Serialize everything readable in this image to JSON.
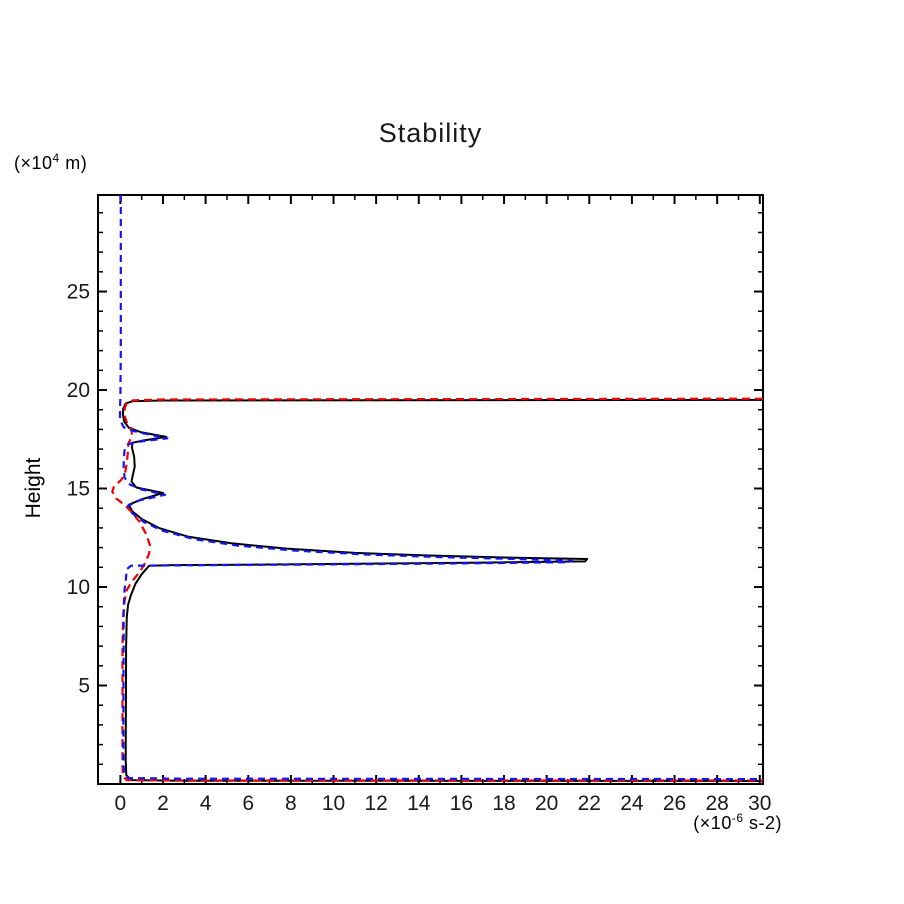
{
  "page": {
    "background": "#ffffff"
  },
  "chart_data": {
    "type": "line",
    "title": "Stability",
    "y_axis_title": "Height",
    "y_unit_label": {
      "prefix": "(×10",
      "sup": "4",
      "suffix": " m)"
    },
    "x_unit_label": {
      "prefix": "(×10",
      "sup": "-6",
      "suffix": " s-2)"
    },
    "xlim": [
      -1.05,
      30.15
    ],
    "ylim": [
      0,
      29.9
    ],
    "x_tick_labels": [
      0,
      2,
      4,
      6,
      8,
      10,
      12,
      14,
      16,
      18,
      20,
      22,
      24,
      26,
      28,
      30
    ],
    "y_tick_labels": [
      5,
      10,
      15,
      20,
      25
    ],
    "x_minor_step": 1,
    "x_major_step": 2,
    "y_minor_step": 1,
    "y_major_step": 5,
    "grid": "off",
    "legend": "none",
    "frame_color": "#000000",
    "label_color": "#1a1a1a",
    "series": [
      {
        "name": "black-solid-profile",
        "color": "#000000",
        "dash": "",
        "width": 2,
        "points": [
          [
            30.15,
            19.5
          ],
          [
            2.0,
            19.47
          ],
          [
            0.6,
            19.44
          ],
          [
            0.25,
            19.32
          ],
          [
            0.13,
            19.05
          ],
          [
            0.12,
            18.75
          ],
          [
            0.18,
            18.4
          ],
          [
            0.4,
            18.08
          ],
          [
            1.0,
            17.85
          ],
          [
            2.15,
            17.62
          ],
          [
            1.0,
            17.42
          ],
          [
            0.55,
            17.32
          ],
          [
            0.55,
            17.05
          ],
          [
            0.65,
            16.6
          ],
          [
            0.67,
            16.1
          ],
          [
            0.58,
            15.65
          ],
          [
            0.52,
            15.35
          ],
          [
            0.75,
            15.05
          ],
          [
            2.0,
            14.77
          ],
          [
            1.0,
            14.45
          ],
          [
            0.4,
            14.18
          ],
          [
            0.55,
            13.85
          ],
          [
            1.0,
            13.45
          ],
          [
            1.8,
            13.0
          ],
          [
            3.2,
            12.55
          ],
          [
            5.2,
            12.22
          ],
          [
            7.8,
            11.95
          ],
          [
            11.0,
            11.73
          ],
          [
            14.5,
            11.6
          ],
          [
            18.0,
            11.5
          ],
          [
            21.9,
            11.42
          ],
          [
            21.8,
            11.3
          ],
          [
            17.0,
            11.24
          ],
          [
            11.0,
            11.18
          ],
          [
            5.5,
            11.13
          ],
          [
            2.5,
            11.11
          ],
          [
            1.35,
            11.08
          ],
          [
            1.0,
            10.65
          ],
          [
            0.7,
            10.15
          ],
          [
            0.5,
            9.6
          ],
          [
            0.36,
            9.1
          ],
          [
            0.3,
            8.5
          ],
          [
            0.27,
            7.0
          ],
          [
            0.26,
            4.0
          ],
          [
            0.25,
            1.2
          ],
          [
            0.28,
            0.45
          ],
          [
            0.5,
            0.2
          ],
          [
            3.0,
            0.17
          ],
          [
            30.15,
            0.15
          ]
        ]
      },
      {
        "name": "red-dashed-profile",
        "color": "#f40000",
        "dash": "8 5",
        "width": 2.2,
        "points": [
          [
            30.15,
            19.56
          ],
          [
            2.0,
            19.52
          ],
          [
            0.6,
            19.48
          ],
          [
            0.3,
            19.35
          ],
          [
            0.2,
            19.05
          ],
          [
            0.2,
            18.7
          ],
          [
            0.3,
            18.35
          ],
          [
            0.55,
            18.0
          ],
          [
            0.52,
            17.6
          ],
          [
            0.38,
            17.3
          ],
          [
            0.35,
            16.8
          ],
          [
            0.3,
            16.3
          ],
          [
            0.22,
            15.8
          ],
          [
            0.05,
            15.45
          ],
          [
            -0.3,
            15.1
          ],
          [
            -0.38,
            14.85
          ],
          [
            -0.2,
            14.5
          ],
          [
            0.1,
            14.25
          ],
          [
            0.5,
            13.85
          ],
          [
            0.9,
            13.3
          ],
          [
            1.2,
            12.7
          ],
          [
            1.38,
            12.15
          ],
          [
            1.35,
            11.7
          ],
          [
            1.15,
            11.2
          ],
          [
            0.9,
            10.75
          ],
          [
            0.55,
            10.3
          ],
          [
            0.3,
            9.85
          ],
          [
            0.2,
            9.3
          ],
          [
            0.13,
            8.6
          ],
          [
            0.1,
            7.0
          ],
          [
            0.1,
            4.0
          ],
          [
            0.1,
            1.0
          ],
          [
            0.12,
            0.4
          ],
          [
            0.3,
            0.2
          ],
          [
            3.0,
            0.18
          ],
          [
            30.15,
            0.18
          ]
        ]
      },
      {
        "name": "blue-dashed-profile",
        "color": "#1414f5",
        "dash": "7 5",
        "width": 2.2,
        "points": [
          [
            0.02,
            29.9
          ],
          [
            0.02,
            26.0
          ],
          [
            0.02,
            22.0
          ],
          [
            0.0,
            19.6
          ],
          [
            -0.02,
            19.0
          ],
          [
            -0.02,
            18.5
          ],
          [
            0.15,
            18.12
          ],
          [
            0.5,
            17.95
          ],
          [
            1.1,
            17.8
          ],
          [
            2.2,
            17.55
          ],
          [
            0.9,
            17.38
          ],
          [
            0.35,
            17.25
          ],
          [
            0.2,
            16.95
          ],
          [
            0.16,
            16.5
          ],
          [
            0.15,
            16.0
          ],
          [
            0.2,
            15.55
          ],
          [
            0.45,
            15.2
          ],
          [
            1.0,
            14.95
          ],
          [
            2.1,
            14.68
          ],
          [
            0.9,
            14.4
          ],
          [
            0.35,
            14.12
          ],
          [
            0.55,
            13.75
          ],
          [
            1.1,
            13.3
          ],
          [
            2.0,
            12.85
          ],
          [
            3.5,
            12.42
          ],
          [
            5.5,
            12.1
          ],
          [
            8.2,
            11.85
          ],
          [
            11.5,
            11.65
          ],
          [
            15.0,
            11.52
          ],
          [
            18.5,
            11.42
          ],
          [
            21.2,
            11.33
          ],
          [
            21.0,
            11.26
          ],
          [
            16.0,
            11.2
          ],
          [
            10.0,
            11.15
          ],
          [
            4.5,
            11.11
          ],
          [
            1.8,
            11.09
          ],
          [
            0.5,
            11.08
          ],
          [
            0.3,
            10.9
          ],
          [
            0.26,
            10.4
          ],
          [
            0.2,
            9.9
          ],
          [
            0.17,
            9.3
          ],
          [
            0.15,
            8.5
          ],
          [
            0.15,
            7.0
          ],
          [
            0.14,
            4.0
          ],
          [
            0.14,
            1.3
          ],
          [
            0.17,
            0.55
          ],
          [
            0.35,
            0.3
          ],
          [
            3.0,
            0.27
          ],
          [
            30.15,
            0.25
          ]
        ]
      }
    ]
  }
}
